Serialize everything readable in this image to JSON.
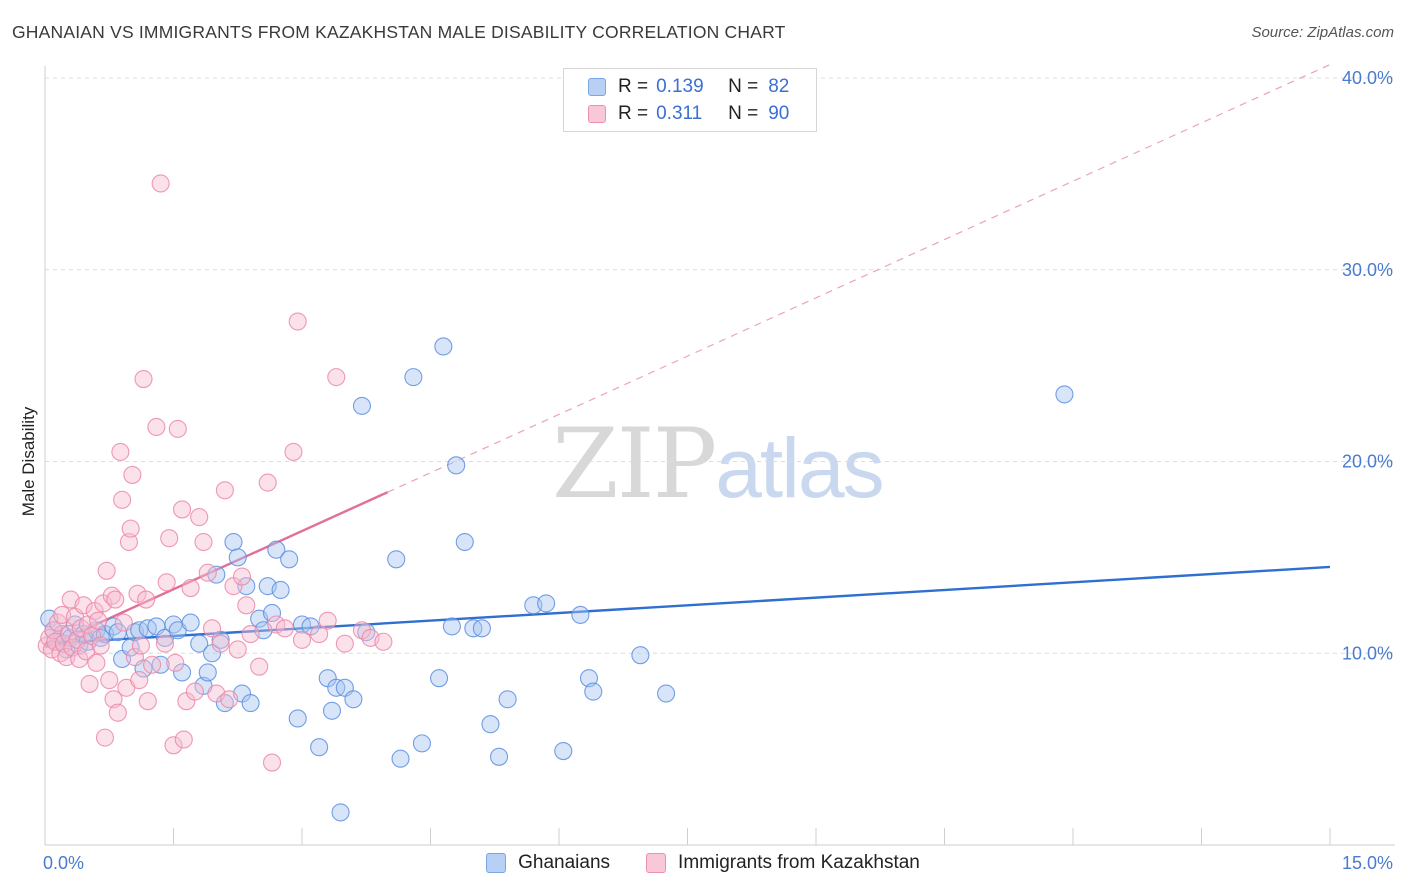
{
  "title": "GHANAIAN VS IMMIGRANTS FROM KAZAKHSTAN MALE DISABILITY CORRELATION CHART",
  "source": "Source: ZipAtlas.com",
  "watermark": {
    "zip": "ZIP",
    "atlas": "atlas"
  },
  "legend_top": [
    {
      "r_label": "R =",
      "r_value": "0.139",
      "n_label": "N =",
      "n_value": "82",
      "color": "#7aa6e6",
      "fill": "#b8d0f3"
    },
    {
      "r_label": "R =",
      "r_value": "0.311",
      "n_label": "N =",
      "n_value": "90",
      "color": "#ef8fb0",
      "fill": "#f8c8d8"
    }
  ],
  "legend_bottom": [
    "Ghanaians",
    "Immigrants from Kazakhstan"
  ],
  "chart_data": {
    "type": "scatter",
    "title": "GHANAIAN VS IMMIGRANTS FROM KAZAKHSTAN MALE DISABILITY CORRELATION CHART",
    "xlabel": "",
    "ylabel": "Male Disability",
    "xlim": [
      0,
      15
    ],
    "ylim": [
      0,
      40
    ],
    "x_tick_labels": [
      "0.0%",
      "15.0%"
    ],
    "y_ticks": [
      10,
      20,
      30,
      40
    ],
    "y_tick_labels": [
      "10.0%",
      "20.0%",
      "30.0%",
      "40.0%"
    ],
    "series": [
      {
        "name": "Ghanaians",
        "color": "#5b8ee0",
        "fill": "#a9c6ef",
        "trend": {
          "x": [
            0,
            15
          ],
          "y": [
            10.5,
            14.5
          ],
          "style": "solid"
        },
        "points": [
          [
            0.05,
            11.8
          ],
          [
            0.1,
            11.2
          ],
          [
            0.15,
            10.6
          ],
          [
            0.2,
            11.0
          ],
          [
            0.25,
            10.2
          ],
          [
            0.3,
            10.8
          ],
          [
            0.35,
            11.5
          ],
          [
            0.4,
            10.4
          ],
          [
            0.45,
            11.0
          ],
          [
            0.5,
            10.6
          ],
          [
            0.6,
            11.2
          ],
          [
            0.65,
            10.8
          ],
          [
            0.7,
            11.0
          ],
          [
            0.8,
            11.4
          ],
          [
            0.85,
            11.1
          ],
          [
            0.9,
            9.7
          ],
          [
            1.0,
            10.3
          ],
          [
            1.05,
            11.1
          ],
          [
            1.1,
            11.2
          ],
          [
            1.15,
            9.2
          ],
          [
            1.2,
            11.3
          ],
          [
            1.3,
            11.4
          ],
          [
            1.35,
            9.4
          ],
          [
            1.4,
            10.8
          ],
          [
            1.5,
            11.5
          ],
          [
            1.55,
            11.2
          ],
          [
            1.6,
            9.0
          ],
          [
            1.7,
            11.6
          ],
          [
            1.8,
            10.5
          ],
          [
            1.85,
            8.3
          ],
          [
            1.9,
            9.0
          ],
          [
            1.95,
            10.0
          ],
          [
            2.0,
            14.1
          ],
          [
            2.05,
            10.7
          ],
          [
            2.1,
            7.4
          ],
          [
            2.2,
            15.8
          ],
          [
            2.25,
            15.0
          ],
          [
            2.3,
            7.9
          ],
          [
            2.35,
            13.5
          ],
          [
            2.4,
            7.4
          ],
          [
            2.5,
            11.8
          ],
          [
            2.55,
            11.2
          ],
          [
            2.6,
            13.5
          ],
          [
            2.65,
            12.1
          ],
          [
            2.7,
            15.4
          ],
          [
            2.75,
            13.3
          ],
          [
            2.85,
            14.9
          ],
          [
            2.95,
            6.6
          ],
          [
            3.0,
            11.5
          ],
          [
            3.1,
            11.4
          ],
          [
            3.2,
            5.1
          ],
          [
            3.3,
            8.7
          ],
          [
            3.35,
            7.0
          ],
          [
            3.4,
            8.2
          ],
          [
            3.45,
            1.7
          ],
          [
            3.5,
            8.2
          ],
          [
            3.6,
            7.6
          ],
          [
            3.7,
            22.9
          ],
          [
            3.75,
            11.1
          ],
          [
            4.1,
            14.9
          ],
          [
            4.15,
            4.5
          ],
          [
            4.3,
            24.4
          ],
          [
            4.4,
            5.3
          ],
          [
            4.6,
            8.7
          ],
          [
            4.65,
            26.0
          ],
          [
            4.75,
            11.4
          ],
          [
            4.8,
            19.8
          ],
          [
            4.9,
            15.8
          ],
          [
            5.0,
            11.3
          ],
          [
            5.1,
            11.3
          ],
          [
            5.2,
            6.3
          ],
          [
            5.3,
            4.6
          ],
          [
            5.4,
            7.6
          ],
          [
            5.7,
            12.5
          ],
          [
            5.85,
            12.6
          ],
          [
            6.05,
            4.9
          ],
          [
            6.25,
            12.0
          ],
          [
            6.35,
            8.7
          ],
          [
            6.4,
            8.0
          ],
          [
            6.95,
            9.9
          ],
          [
            7.25,
            7.9
          ],
          [
            11.9,
            23.5
          ]
        ]
      },
      {
        "name": "Immigrants from Kazakhstan",
        "color": "#ec87a8",
        "fill": "#f6bdd0",
        "trend": {
          "x": [
            0,
            4.0
          ],
          "y": [
            10.3,
            18.4
          ],
          "style": "solid",
          "extension": {
            "x": [
              4.0,
              15
            ],
            "y": [
              18.4,
              40.7
            ],
            "style": "dashed"
          }
        },
        "points": [
          [
            0.02,
            10.4
          ],
          [
            0.05,
            10.8
          ],
          [
            0.08,
            10.2
          ],
          [
            0.1,
            11.2
          ],
          [
            0.12,
            10.6
          ],
          [
            0.15,
            11.6
          ],
          [
            0.18,
            10.0
          ],
          [
            0.2,
            12.0
          ],
          [
            0.22,
            10.5
          ],
          [
            0.25,
            9.8
          ],
          [
            0.28,
            11.0
          ],
          [
            0.3,
            12.8
          ],
          [
            0.32,
            10.3
          ],
          [
            0.35,
            11.9
          ],
          [
            0.38,
            10.7
          ],
          [
            0.4,
            9.7
          ],
          [
            0.42,
            11.3
          ],
          [
            0.45,
            12.5
          ],
          [
            0.48,
            10.1
          ],
          [
            0.5,
            11.5
          ],
          [
            0.52,
            8.4
          ],
          [
            0.55,
            10.9
          ],
          [
            0.58,
            12.2
          ],
          [
            0.6,
            9.5
          ],
          [
            0.62,
            11.7
          ],
          [
            0.65,
            10.4
          ],
          [
            0.68,
            12.6
          ],
          [
            0.7,
            5.6
          ],
          [
            0.72,
            14.3
          ],
          [
            0.75,
            8.6
          ],
          [
            0.78,
            13.0
          ],
          [
            0.8,
            7.6
          ],
          [
            0.82,
            12.8
          ],
          [
            0.85,
            6.9
          ],
          [
            0.88,
            20.5
          ],
          [
            0.9,
            18.0
          ],
          [
            0.92,
            11.6
          ],
          [
            0.95,
            8.2
          ],
          [
            0.98,
            15.8
          ],
          [
            1.0,
            16.5
          ],
          [
            1.02,
            19.3
          ],
          [
            1.05,
            9.8
          ],
          [
            1.08,
            13.1
          ],
          [
            1.1,
            8.6
          ],
          [
            1.12,
            10.4
          ],
          [
            1.15,
            24.3
          ],
          [
            1.18,
            12.8
          ],
          [
            1.2,
            7.5
          ],
          [
            1.25,
            9.4
          ],
          [
            1.3,
            21.8
          ],
          [
            1.35,
            34.5
          ],
          [
            1.4,
            10.5
          ],
          [
            1.42,
            13.7
          ],
          [
            1.45,
            16.0
          ],
          [
            1.5,
            5.2
          ],
          [
            1.52,
            9.5
          ],
          [
            1.55,
            21.7
          ],
          [
            1.6,
            17.5
          ],
          [
            1.62,
            5.5
          ],
          [
            1.65,
            7.5
          ],
          [
            1.7,
            13.4
          ],
          [
            1.75,
            8.0
          ],
          [
            1.8,
            17.1
          ],
          [
            1.85,
            15.8
          ],
          [
            1.9,
            14.2
          ],
          [
            1.95,
            11.3
          ],
          [
            2.0,
            7.9
          ],
          [
            2.05,
            10.5
          ],
          [
            2.1,
            18.5
          ],
          [
            2.15,
            7.6
          ],
          [
            2.2,
            13.5
          ],
          [
            2.25,
            10.2
          ],
          [
            2.3,
            14.0
          ],
          [
            2.35,
            12.5
          ],
          [
            2.4,
            11.0
          ],
          [
            2.5,
            9.3
          ],
          [
            2.6,
            18.9
          ],
          [
            2.65,
            4.3
          ],
          [
            2.7,
            11.5
          ],
          [
            2.8,
            11.3
          ],
          [
            2.9,
            20.5
          ],
          [
            2.95,
            27.3
          ],
          [
            3.0,
            10.7
          ],
          [
            3.2,
            11.0
          ],
          [
            3.3,
            11.7
          ],
          [
            3.4,
            24.4
          ],
          [
            3.5,
            10.5
          ],
          [
            3.7,
            11.2
          ],
          [
            3.8,
            10.8
          ],
          [
            3.95,
            10.6
          ]
        ]
      }
    ]
  }
}
